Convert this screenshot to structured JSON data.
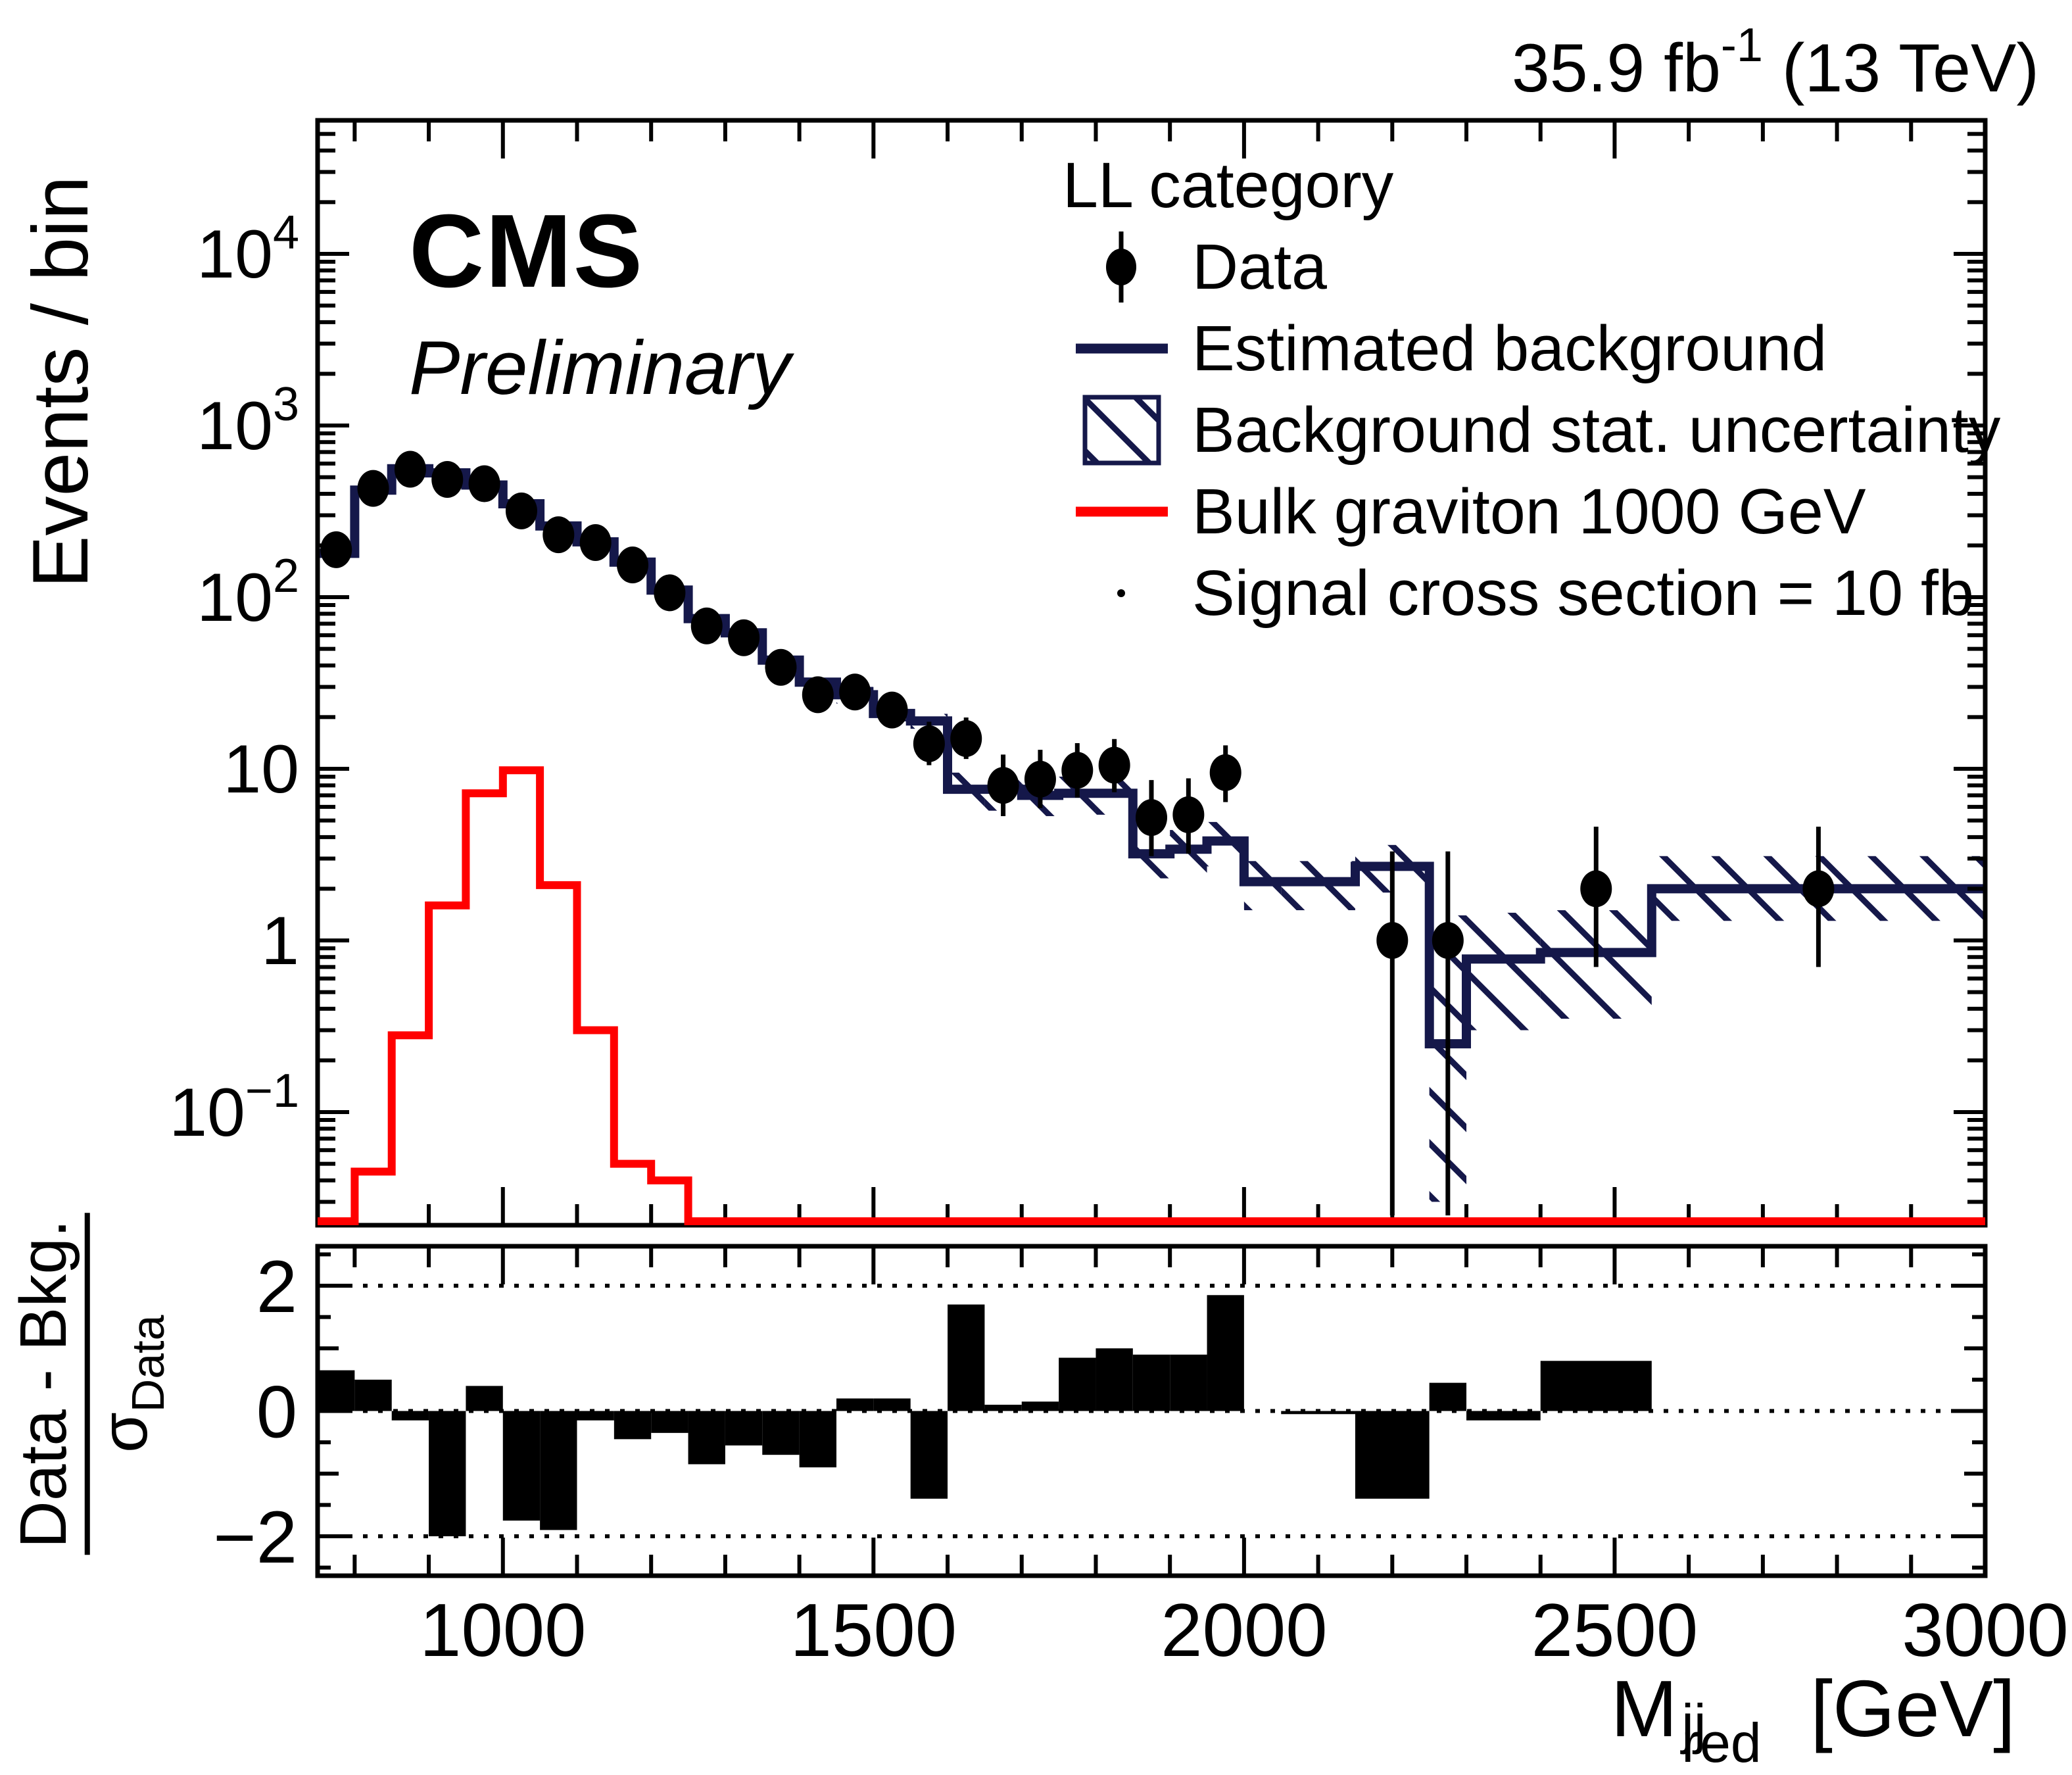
{
  "labels": {
    "cms": "CMS",
    "preliminary": "Preliminary",
    "lumi_value": "35.9 fb",
    "lumi_exponent": "-1",
    "lumi_energy": " (13 TeV)"
  },
  "legend": {
    "header": "LL category",
    "data": "Data",
    "background": "Estimated background",
    "uncertainty": "Background stat. uncertainty",
    "signal": "Bulk graviton 1000 GeV",
    "signal_note": "Signal cross section = 10 fb"
  },
  "axes": {
    "x": {
      "title_main": "M",
      "title_sup": "red",
      "title_sub": "jj",
      "title_unit": " [GeV]",
      "range": [
        750,
        3000
      ],
      "major_ticks": [
        1000,
        1500,
        2000,
        2500,
        3000
      ],
      "major_tick_labels": [
        "1000",
        "1500",
        "2000",
        "2500",
        "3000"
      ],
      "minor_step": 100
    },
    "y_main": {
      "title": "Events / bin",
      "log": true,
      "range": [
        0.022,
        60000
      ],
      "tick_labels": [
        {
          "value": 0.1,
          "base": "10",
          "exp": "−1"
        },
        {
          "value": 1,
          "base": "1",
          "exp": ""
        },
        {
          "value": 10,
          "base": "10",
          "exp": ""
        },
        {
          "value": 100,
          "base": "10",
          "exp": "2"
        },
        {
          "value": 1000,
          "base": "10",
          "exp": "3"
        },
        {
          "value": 10000,
          "base": "10",
          "exp": "4"
        }
      ]
    },
    "y_ratio": {
      "numerator": "Data - Bkg.",
      "den_sym": "σ",
      "den_sub": "Data",
      "range": [
        -2.63,
        2.63
      ],
      "labeled_ticks": [
        {
          "value": 2,
          "label": "2"
        },
        {
          "value": 0,
          "label": "0"
        },
        {
          "value": -2,
          "label": "−2"
        }
      ],
      "dotted_lines": [
        2,
        0,
        -2
      ]
    }
  },
  "chart_data": {
    "type": "bar",
    "subtype": "hep-histogram-with-pull-panel",
    "title": "LL category",
    "xlabel": "Mjj_red [GeV]",
    "ylabel": "Events / bin",
    "ylabel_ratio": "(Data - Bkg.)/sigma_Data",
    "xlim": [
      750,
      3000
    ],
    "ylim_main_log": [
      0.022,
      60000
    ],
    "ylim_ratio": [
      -2.63,
      2.63
    ],
    "grid": false,
    "legend_position": "top-center",
    "colors": {
      "background_line": "#15184a",
      "hatch": "#15184a",
      "signal": "#ff0000",
      "data": "#000000",
      "frame": "#000000"
    },
    "bin_edges": [
      750,
      800,
      850,
      900,
      950,
      1000,
      1050,
      1100,
      1150,
      1200,
      1250,
      1300,
      1350,
      1400,
      1450,
      1500,
      1550,
      1600,
      1650,
      1700,
      1750,
      1800,
      1850,
      1900,
      1950,
      2000,
      2050,
      2150,
      2250,
      2300,
      2400,
      2550,
      3000
    ],
    "series": [
      {
        "name": "Estimated background",
        "type": "step-histogram",
        "values": [
          180,
          420,
          560,
          530,
          450,
          350,
          260,
          210,
          160,
          110,
          75,
          62,
          43,
          32,
          27,
          21,
          19,
          7.6,
          7.6,
          7.0,
          7.2,
          7.2,
          3.2,
          3.4,
          3.8,
          2.2,
          2.2,
          2.7,
          0.25,
          0.78,
          0.85,
          2.0
        ]
      },
      {
        "name": "Background stat. uncertainty",
        "type": "hatched-band",
        "lo": [
          171,
          399,
          532,
          504,
          428,
          333,
          247,
          200,
          152,
          105,
          71,
          59,
          41,
          30,
          24,
          18.9,
          17.1,
          5.7,
          5.7,
          5.3,
          5.4,
          5.4,
          2.3,
          2.4,
          2.7,
          1.5,
          1.5,
          1.9,
          0.03,
          0.3,
          0.35,
          1.3
        ],
        "hi": [
          189,
          441,
          588,
          557,
          473,
          368,
          273,
          221,
          168,
          116,
          79,
          65,
          45,
          34,
          30,
          23.1,
          20.9,
          9.5,
          9.5,
          8.8,
          9.0,
          9.0,
          4.1,
          4.4,
          4.9,
          2.9,
          2.9,
          3.6,
          1.4,
          1.45,
          1.5,
          3.1
        ]
      },
      {
        "name": "Bulk graviton 1000 GeV",
        "type": "step-histogram",
        "bin_edges": [
          750,
          800,
          850,
          900,
          950,
          1000,
          1050,
          1100,
          1150,
          1200,
          1250,
          1300
        ],
        "values": [
          0,
          0.045,
          0.28,
          1.6,
          7.2,
          9.8,
          2.1,
          0.3,
          0.05,
          0.04,
          0
        ]
      },
      {
        "name": "Data",
        "type": "points",
        "points": [
          [
            775,
            189,
            175,
            203
          ],
          [
            825,
            430,
            409,
            451
          ],
          [
            875,
            556,
            532,
            580
          ],
          [
            925,
            485,
            463,
            507
          ],
          [
            975,
            458,
            437,
            479
          ],
          [
            1025,
            318,
            300,
            336
          ],
          [
            1075,
            231,
            216,
            246
          ],
          [
            1125,
            208,
            194,
            222
          ],
          [
            1175,
            154,
            142,
            166
          ],
          [
            1225,
            106,
            96,
            116
          ],
          [
            1275,
            68,
            60,
            76
          ],
          [
            1325,
            58,
            50,
            66
          ],
          [
            1375,
            39,
            33,
            45
          ],
          [
            1425,
            27,
            22,
            32
          ],
          [
            1475,
            28,
            23,
            33
          ],
          [
            1525,
            22,
            17.6,
            27.1
          ],
          [
            1575,
            14,
            10.5,
            18.8
          ],
          [
            1625,
            15,
            11.4,
            19.9
          ],
          [
            1675,
            8,
            5.3,
            12.1
          ],
          [
            1725,
            8.7,
            5.9,
            12.9
          ],
          [
            1775,
            9.8,
            6.8,
            14.1
          ],
          [
            1825,
            10.5,
            7.3,
            14.9
          ],
          [
            1875,
            5.2,
            3.1,
            8.6
          ],
          [
            1925,
            5.4,
            3.2,
            8.8
          ],
          [
            1975,
            9.5,
            6.4,
            13.7
          ],
          [
            2200,
            1.0,
            0.025,
            3.3
          ],
          [
            2275,
            1.0,
            0.025,
            3.3
          ],
          [
            2475,
            2.0,
            0.7,
            4.6
          ],
          [
            2775,
            2.0,
            0.7,
            4.6
          ]
        ]
      }
    ],
    "ratio": {
      "name": "pulls",
      "values": [
        0.65,
        0.5,
        -0.15,
        -2.0,
        0.4,
        -1.75,
        -1.9,
        -0.15,
        -0.45,
        -0.35,
        -0.85,
        -0.55,
        -0.7,
        -0.9,
        0.2,
        0.2,
        -1.4,
        1.7,
        0.1,
        0.15,
        0.85,
        1.0,
        0.9,
        0.9,
        1.85,
        0,
        -0.05,
        -1.4,
        0.45,
        -0.15,
        0.8,
        0
      ]
    }
  }
}
